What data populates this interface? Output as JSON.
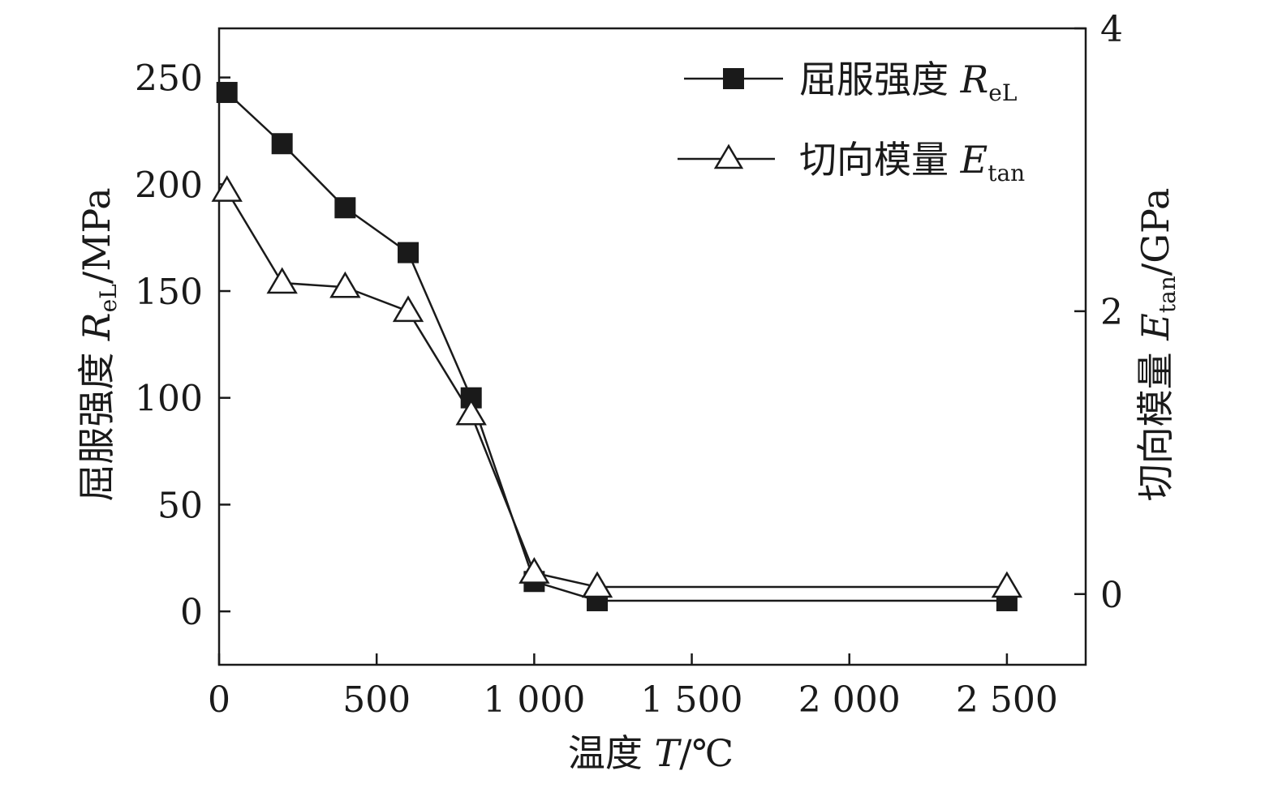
{
  "chart_data": {
    "type": "line",
    "title": "",
    "x": [
      25,
      200,
      400,
      600,
      800,
      1000,
      1200,
      2500
    ],
    "xlabel": {
      "main": "温度 ",
      "italic": "T",
      "unit": "/℃"
    },
    "xlim": [
      0,
      2750
    ],
    "xticks": [
      0,
      500,
      1000,
      1500,
      2000,
      2500
    ],
    "xtick_labels": [
      "0",
      "500",
      "1 000",
      "1 500",
      "2 000",
      "2 500"
    ],
    "ylabel_left": {
      "main": "屈服强度 ",
      "italic": "R",
      "sub": "eL",
      "unit": "/MPa"
    },
    "ylim_left": [
      -25,
      273
    ],
    "yticks_left": [
      0,
      50,
      100,
      150,
      200,
      250
    ],
    "ytick_labels_left": [
      "0",
      "50",
      "100",
      "150",
      "200",
      "250"
    ],
    "ylabel_right": {
      "main": "切向模量 ",
      "italic": "E",
      "sub": "tan",
      "unit": "/GPa"
    },
    "ylim_right": [
      -0.5,
      4.0
    ],
    "yticks_right": [
      0,
      2,
      4
    ],
    "ytick_labels_right": [
      "0",
      "2",
      "4"
    ],
    "legend_position": "top-right",
    "series": [
      {
        "name": {
          "main": "屈服强度 ",
          "italic": "R",
          "sub": "eL"
        },
        "axis": "left",
        "marker": "filled-square",
        "color": "#1a1a1a",
        "values": [
          243,
          219,
          189,
          168,
          100,
          14,
          5,
          5
        ]
      },
      {
        "name": {
          "main": "切向模量 ",
          "italic": "E",
          "sub": "tan"
        },
        "axis": "right",
        "marker": "open-triangle",
        "color": "#1a1a1a",
        "values": [
          2.85,
          2.2,
          2.17,
          2.0,
          1.27,
          0.15,
          0.05,
          0.05
        ]
      }
    ]
  }
}
